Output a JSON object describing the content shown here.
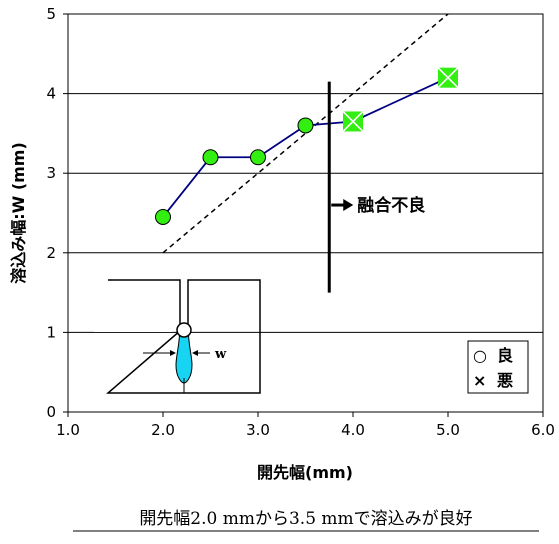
{
  "chart_data": {
    "type": "line",
    "xlabel": "開先幅(mm)",
    "ylabel": "溶込み幅:W (mm)",
    "xlim": [
      1.0,
      6.0
    ],
    "ylim": [
      0,
      5
    ],
    "x_ticks": [
      "1.0",
      "2.0",
      "3.0",
      "4.0",
      "5.0",
      "6.0"
    ],
    "y_ticks": [
      "0",
      "1",
      "2",
      "3",
      "4",
      "5"
    ],
    "grid": "horizontal",
    "series": [
      {
        "points": [
          {
            "x": 2.0,
            "y": 2.45,
            "result": "good"
          },
          {
            "x": 2.5,
            "y": 3.2,
            "result": "good"
          },
          {
            "x": 3.0,
            "y": 3.2,
            "result": "good"
          },
          {
            "x": 3.5,
            "y": 3.6,
            "result": "good"
          },
          {
            "x": 4.0,
            "y": 3.65,
            "result": "bad"
          },
          {
            "x": 5.0,
            "y": 4.2,
            "result": "bad"
          }
        ]
      }
    ],
    "reference_line": {
      "style": "dashed",
      "from": [
        2.0,
        2.0
      ],
      "to": [
        5.0,
        5.0
      ]
    },
    "threshold_line": {
      "x": 3.75,
      "y_from": 1.5,
      "y_to": 4.15
    },
    "annotation": "融合不良",
    "legend": [
      {
        "symbol": "○",
        "label": "良"
      },
      {
        "symbol": "×",
        "label": "悪"
      }
    ],
    "legend_position": "bottom-right",
    "inset": {
      "dimension_label": "w"
    },
    "colors": {
      "good_marker": "#33ee11",
      "bad_marker": "#33ee11",
      "line": "#000080"
    }
  },
  "caption": "開先幅2.0 mmから3.5 mmで溶込みが良好"
}
